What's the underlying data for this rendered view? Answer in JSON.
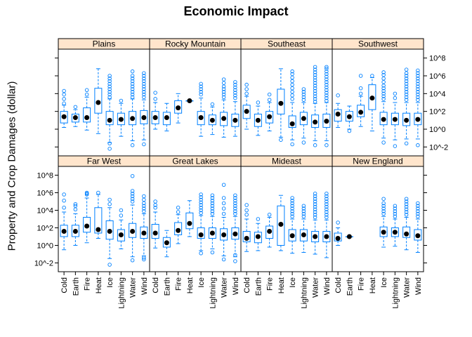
{
  "chart_data": {
    "type": "box",
    "title": "Economic Impact",
    "ylabel": "Property and Crop Damages (dollar)",
    "xlabel": "",
    "y_scale": "log10",
    "ylim_log10": [
      -3,
      9
    ],
    "y_ticks": [
      {
        "v": -2,
        "label": "10^-2"
      },
      {
        "v": 0,
        "label": "10^0"
      },
      {
        "v": 2,
        "label": "10^2"
      },
      {
        "v": 4,
        "label": "10^4"
      },
      {
        "v": 6,
        "label": "10^6"
      },
      {
        "v": 8,
        "label": "10^8"
      }
    ],
    "categories": [
      "Cold",
      "Earth",
      "Fire",
      "Heat",
      "Ice",
      "Lightning",
      "Water",
      "Wind"
    ],
    "colors": {
      "box": "#0080ff",
      "median": "#000000",
      "strip": "#ffe5cc",
      "frame": "#000000"
    },
    "panels": [
      {
        "name": "Plains",
        "boxes": [
          {
            "cat": "Cold",
            "q1": 0.7,
            "med": 1.4,
            "q3": 2.0,
            "lo": 0.2,
            "hi": 2.7,
            "out": [
              2.9,
              3.4,
              3.9,
              4.3
            ]
          },
          {
            "cat": "Earth",
            "q1": 0.8,
            "med": 1.3,
            "q3": 1.7,
            "lo": 0.3,
            "hi": 2.2,
            "out": [
              2.5
            ]
          },
          {
            "cat": "Fire",
            "q1": 0.8,
            "med": 1.3,
            "q3": 2.4,
            "lo": -0.1,
            "hi": 3.6,
            "out": [
              3.9,
              4.4
            ]
          },
          {
            "cat": "Heat",
            "q1": 1.8,
            "med": 3.0,
            "q3": 4.6,
            "lo": -0.5,
            "hi": 6.8,
            "out": []
          },
          {
            "cat": "Ice",
            "q1": 0.5,
            "med": 1.0,
            "q3": 2.0,
            "lo": -1.5,
            "hi": 3.4,
            "out": [
              -2.2,
              -1.6,
              3.6,
              3.9,
              4.2,
              4.5,
              4.8,
              5.1,
              5.4,
              5.7,
              6.0
            ]
          },
          {
            "cat": "Lightning",
            "q1": 0.5,
            "med": 1.1,
            "q3": 1.8,
            "lo": -0.8,
            "hi": 2.9,
            "out": [
              3.2
            ]
          },
          {
            "cat": "Water",
            "q1": 0.5,
            "med": 1.2,
            "q3": 2.0,
            "lo": -1.3,
            "hi": 3.4,
            "out": [
              -1.8,
              3.6,
              3.9,
              4.2,
              4.5,
              4.8,
              5.1,
              5.4,
              5.7,
              6.0,
              6.5
            ]
          },
          {
            "cat": "Wind",
            "q1": 0.6,
            "med": 1.3,
            "q3": 2.1,
            "lo": -1.2,
            "hi": 3.3,
            "out": [
              -1.7,
              3.6,
              3.9,
              4.2,
              4.5,
              4.8,
              5.1,
              5.4,
              5.7,
              6.0,
              6.3
            ]
          }
        ]
      },
      {
        "name": "Rocky Mountain",
        "boxes": [
          {
            "cat": "Cold",
            "q1": 0.6,
            "med": 1.3,
            "q3": 2.0,
            "lo": 0.0,
            "hi": 3.0,
            "out": [
              3.4,
              4.1
            ]
          },
          {
            "cat": "Earth",
            "q1": 0.5,
            "med": 1.3,
            "q3": 1.9,
            "lo": -0.2,
            "hi": 2.9,
            "out": []
          },
          {
            "cat": "Fire",
            "q1": 1.8,
            "med": 2.4,
            "q3": 3.2,
            "lo": 0.7,
            "hi": 4.0,
            "out": []
          },
          {
            "cat": "Heat",
            "q1": 3.2,
            "med": 3.2,
            "q3": 3.2,
            "lo": 3.2,
            "hi": 3.2,
            "out": []
          },
          {
            "cat": "Ice",
            "q1": 0.5,
            "med": 1.3,
            "q3": 2.0,
            "lo": -0.8,
            "hi": 3.5,
            "out": [
              3.9,
              4.2,
              4.5,
              4.8,
              5.1
            ]
          },
          {
            "cat": "Lightning",
            "q1": 0.5,
            "med": 1.0,
            "q3": 1.6,
            "lo": -0.6,
            "hi": 2.5,
            "out": [
              2.8
            ]
          },
          {
            "cat": "Water",
            "q1": 0.4,
            "med": 1.2,
            "q3": 1.9,
            "lo": -0.9,
            "hi": 3.3,
            "out": [
              3.6,
              3.9,
              4.2,
              4.5,
              4.8,
              5.2,
              5.6
            ]
          },
          {
            "cat": "Wind",
            "q1": 0.3,
            "med": 1.0,
            "q3": 1.7,
            "lo": -0.8,
            "hi": 3.1,
            "out": [
              3.5,
              3.8,
              4.1,
              4.4,
              4.7,
              5.0,
              5.3
            ]
          }
        ]
      },
      {
        "name": "Southeast",
        "boxes": [
          {
            "cat": "Cold",
            "q1": 1.2,
            "med": 2.0,
            "q3": 2.7,
            "lo": 0.0,
            "hi": 3.7,
            "out": [
              4.0,
              4.5,
              5.0
            ]
          },
          {
            "cat": "Earth",
            "q1": 0.3,
            "med": 1.0,
            "q3": 1.7,
            "lo": -0.7,
            "hi": 2.6,
            "out": [
              3.0
            ]
          },
          {
            "cat": "Fire",
            "q1": 0.7,
            "med": 1.4,
            "q3": 2.0,
            "lo": -0.2,
            "hi": 3.0,
            "out": [
              3.3,
              3.9
            ]
          },
          {
            "cat": "Heat",
            "q1": 1.7,
            "med": 2.9,
            "q3": 4.5,
            "lo": -0.9,
            "hi": 6.8,
            "out": [
              -1.2
            ]
          },
          {
            "cat": "Ice",
            "q1": 0.2,
            "med": 0.6,
            "q3": 1.5,
            "lo": -1.2,
            "hi": 3.0,
            "out": [
              -1.7,
              3.4,
              3.8,
              4.2,
              4.6,
              5.0,
              5.4,
              5.8,
              6.2,
              6.5
            ]
          },
          {
            "cat": "Lightning",
            "q1": 0.5,
            "med": 1.2,
            "q3": 1.9,
            "lo": -1.0,
            "hi": 3.0,
            "out": [
              -1.5,
              3.3,
              3.6,
              3.9,
              4.2,
              4.5
            ]
          },
          {
            "cat": "Water",
            "q1": 0.2,
            "med": 0.8,
            "q3": 1.6,
            "lo": -1.3,
            "hi": 2.9,
            "out": [
              -1.8,
              3.1,
              3.4,
              3.7,
              4.0,
              4.3,
              4.6,
              4.9,
              5.2,
              5.5,
              5.8,
              6.1,
              6.4,
              6.7,
              7.0
            ]
          },
          {
            "cat": "Wind",
            "q1": 0.2,
            "med": 0.9,
            "q3": 1.7,
            "lo": -1.3,
            "hi": 3.0,
            "out": [
              -1.8,
              3.2,
              3.5,
              3.8,
              4.1,
              4.4,
              4.7,
              5.0,
              5.3,
              5.6,
              5.9,
              6.2,
              6.5,
              6.8,
              7.0
            ]
          }
        ]
      },
      {
        "name": "Southwest",
        "boxes": [
          {
            "cat": "Cold",
            "q1": 0.9,
            "med": 1.7,
            "q3": 2.2,
            "lo": 0.2,
            "hi": 2.9,
            "out": [
              3.8
            ]
          },
          {
            "cat": "Earth",
            "q1": 0.9,
            "med": 1.4,
            "q3": 2.0,
            "lo": 0.0,
            "hi": 2.6,
            "out": [
              -0.2
            ]
          },
          {
            "cat": "Fire",
            "q1": 1.4,
            "med": 1.9,
            "q3": 2.7,
            "lo": 0.3,
            "hi": 3.7,
            "out": [
              4.0,
              4.6,
              6.0
            ]
          },
          {
            "cat": "Heat",
            "q1": 2.2,
            "med": 3.5,
            "q3": 5.0,
            "lo": -0.2,
            "hi": 5.8,
            "out": [
              6.0
            ]
          },
          {
            "cat": "Ice",
            "q1": 0.5,
            "med": 1.1,
            "q3": 1.9,
            "lo": -1.0,
            "hi": 3.1,
            "out": [
              -1.5,
              3.4,
              3.7,
              4.0,
              4.3,
              4.6,
              4.9,
              5.3,
              5.7,
              6.1,
              6.4
            ]
          },
          {
            "cat": "Lightning",
            "q1": 0.5,
            "med": 1.1,
            "q3": 1.8,
            "lo": -1.2,
            "hi": 3.0,
            "out": [
              -1.9,
              3.5,
              4.0
            ]
          },
          {
            "cat": "Water",
            "q1": 0.4,
            "med": 1.0,
            "q3": 1.8,
            "lo": -1.1,
            "hi": 3.0,
            "out": [
              -1.6,
              3.3,
              3.6,
              3.9,
              4.2,
              4.5,
              4.8,
              5.1,
              5.4,
              5.7,
              6.0,
              6.3,
              6.7
            ]
          },
          {
            "cat": "Wind",
            "q1": 0.5,
            "med": 1.1,
            "q3": 1.8,
            "lo": -1.1,
            "hi": 3.0,
            "out": [
              -1.8,
              3.3,
              3.6,
              3.9,
              4.2,
              4.5,
              4.8,
              5.1,
              5.4,
              5.7,
              6.0,
              6.3,
              6.6
            ]
          }
        ]
      },
      {
        "name": "Far West",
        "boxes": [
          {
            "cat": "Cold",
            "q1": 1.0,
            "med": 1.6,
            "q3": 2.3,
            "lo": -0.5,
            "hi": 3.8,
            "out": [
              4.3,
              5.1,
              5.8
            ]
          },
          {
            "cat": "Earth",
            "q1": 1.0,
            "med": 1.6,
            "q3": 2.3,
            "lo": 0.0,
            "hi": 3.6,
            "out": [
              4.1,
              4.5,
              4.7
            ]
          },
          {
            "cat": "Fire",
            "q1": 1.5,
            "med": 2.2,
            "q3": 3.2,
            "lo": 0.3,
            "hi": 5.4,
            "out": [
              5.8,
              5.9,
              6.0
            ]
          },
          {
            "cat": "Heat",
            "q1": 1.4,
            "med": 1.8,
            "q3": 4.3,
            "lo": 0.8,
            "hi": 5.8,
            "out": [
              6.0
            ]
          },
          {
            "cat": "Ice",
            "q1": 0.7,
            "med": 1.6,
            "q3": 2.8,
            "lo": -1.5,
            "hi": 4.3,
            "out": [
              -2.2,
              4.7,
              5.2
            ]
          },
          {
            "cat": "Lightning",
            "q1": 0.5,
            "med": 1.2,
            "q3": 1.8,
            "lo": -0.4,
            "hi": 2.9,
            "out": [
              3.4,
              4.0
            ]
          },
          {
            "cat": "Water",
            "q1": 0.9,
            "med": 1.6,
            "q3": 2.5,
            "lo": -1.3,
            "hi": 4.6,
            "out": [
              -1.7,
              5.0,
              5.3,
              5.6,
              5.9,
              6.2,
              7.9
            ]
          },
          {
            "cat": "Wind",
            "q1": 0.8,
            "med": 1.4,
            "q3": 2.1,
            "lo": -1.2,
            "hi": 3.6,
            "out": [
              -1.6,
              -1.4,
              3.9,
              4.2,
              4.5,
              4.8,
              5.2,
              5.6
            ]
          }
        ]
      },
      {
        "name": "Great Lakes",
        "boxes": [
          {
            "cat": "Cold",
            "q1": 0.8,
            "med": 1.4,
            "q3": 2.4,
            "lo": -0.3,
            "hi": 3.8,
            "out": [
              4.3,
              4.6,
              5.0
            ]
          },
          {
            "cat": "Earth",
            "q1": -0.2,
            "med": 0.3,
            "q3": 0.9,
            "lo": -1.3,
            "hi": 1.7,
            "out": []
          },
          {
            "cat": "Fire",
            "q1": 1.2,
            "med": 1.7,
            "q3": 2.6,
            "lo": 0.2,
            "hi": 3.5,
            "out": [
              3.8,
              4.3
            ]
          },
          {
            "cat": "Heat",
            "q1": 1.9,
            "med": 2.5,
            "q3": 3.7,
            "lo": 1.0,
            "hi": 5.1,
            "out": []
          },
          {
            "cat": "Ice",
            "q1": 0.8,
            "med": 1.2,
            "q3": 2.0,
            "lo": -0.6,
            "hi": 3.4,
            "out": [
              -0.9,
              3.7,
              4.0,
              4.3,
              4.6,
              4.9,
              5.2,
              5.5,
              5.8
            ]
          },
          {
            "cat": "Lightning",
            "q1": 0.8,
            "med": 1.4,
            "q3": 2.0,
            "lo": -0.4,
            "hi": 3.3,
            "out": [
              -0.8,
              3.6,
              3.9,
              4.2,
              4.5,
              4.8,
              5.1,
              5.4,
              5.7
            ]
          },
          {
            "cat": "Water",
            "q1": 0.6,
            "med": 1.2,
            "q3": 1.9,
            "lo": -1.2,
            "hi": 3.2,
            "out": [
              -1.6,
              3.6,
              4.2,
              4.8,
              5.4,
              6.9
            ]
          },
          {
            "cat": "Wind",
            "q1": 0.7,
            "med": 1.3,
            "q3": 2.0,
            "lo": -1.3,
            "hi": 3.3,
            "out": [
              -1.8,
              -1.1,
              3.6,
              3.9,
              4.2,
              4.5,
              4.8,
              5.1,
              5.4,
              5.7
            ]
          }
        ]
      },
      {
        "name": "Mideast",
        "boxes": [
          {
            "cat": "Cold",
            "q1": 0.4,
            "med": 0.8,
            "q3": 1.6,
            "lo": -0.7,
            "hi": 3.0,
            "out": [
              3.5,
              4.0,
              4.6
            ]
          },
          {
            "cat": "Earth",
            "q1": 0.3,
            "med": 1.0,
            "q3": 1.5,
            "lo": -0.6,
            "hi": 2.5,
            "out": [
              3.0
            ]
          },
          {
            "cat": "Fire",
            "q1": 0.8,
            "med": 1.6,
            "q3": 2.2,
            "lo": -0.2,
            "hi": 3.2,
            "out": [
              3.5
            ]
          },
          {
            "cat": "Heat",
            "q1": 0.0,
            "med": 2.4,
            "q3": 4.5,
            "lo": -0.6,
            "hi": 5.7,
            "out": []
          },
          {
            "cat": "Ice",
            "q1": 0.5,
            "med": 1.1,
            "q3": 1.8,
            "lo": -0.9,
            "hi": 3.0,
            "out": [
              3.3,
              3.6,
              3.9,
              4.2,
              4.5,
              4.8,
              5.1,
              5.4
            ]
          },
          {
            "cat": "Lightning",
            "q1": 0.5,
            "med": 1.2,
            "q3": 1.8,
            "lo": -0.8,
            "hi": 3.0,
            "out": [
              3.3,
              3.6,
              3.9,
              4.2,
              4.5
            ]
          },
          {
            "cat": "Water",
            "q1": 0.4,
            "med": 1.0,
            "q3": 1.6,
            "lo": -1.0,
            "hi": 2.9,
            "out": [
              3.2,
              3.5,
              3.8,
              4.1,
              4.4,
              4.7,
              5.0,
              5.3,
              5.6,
              5.9
            ]
          },
          {
            "cat": "Wind",
            "q1": 0.4,
            "med": 1.0,
            "q3": 1.6,
            "lo": -1.4,
            "hi": 2.9,
            "out": [
              3.2,
              3.5,
              3.8,
              4.1,
              4.4,
              4.7,
              5.0,
              5.3,
              5.6,
              5.9
            ]
          }
        ]
      },
      {
        "name": "New England",
        "boxes": [
          {
            "cat": "Cold",
            "q1": 0.5,
            "med": 0.8,
            "q3": 1.4,
            "lo": 0.0,
            "hi": 2.0,
            "out": [
              2.6
            ]
          },
          {
            "cat": "Earth",
            "q1": 1.0,
            "med": 1.0,
            "q3": 1.0,
            "lo": 1.0,
            "hi": 1.0,
            "out": []
          },
          {
            "cat": "Ice",
            "q1": 1.0,
            "med": 1.5,
            "q3": 2.1,
            "lo": -0.2,
            "hi": 3.3,
            "out": [
              3.6,
              3.9,
              4.2,
              4.5,
              4.8,
              5.3
            ]
          },
          {
            "cat": "Lightning",
            "q1": 1.0,
            "med": 1.5,
            "q3": 2.0,
            "lo": -0.1,
            "hi": 3.0,
            "out": [
              3.3,
              3.6,
              3.9,
              4.2,
              4.5
            ]
          },
          {
            "cat": "Water",
            "q1": 0.9,
            "med": 1.3,
            "q3": 2.1,
            "lo": -0.5,
            "hi": 3.2,
            "out": [
              3.5,
              3.8,
              4.1,
              4.4,
              4.7,
              5.0,
              5.3
            ]
          },
          {
            "cat": "Wind",
            "q1": 0.6,
            "med": 1.1,
            "q3": 1.8,
            "lo": -0.8,
            "hi": 3.0,
            "out": [
              3.3,
              3.6,
              3.9,
              4.2,
              4.5,
              4.8
            ]
          }
        ]
      }
    ]
  }
}
